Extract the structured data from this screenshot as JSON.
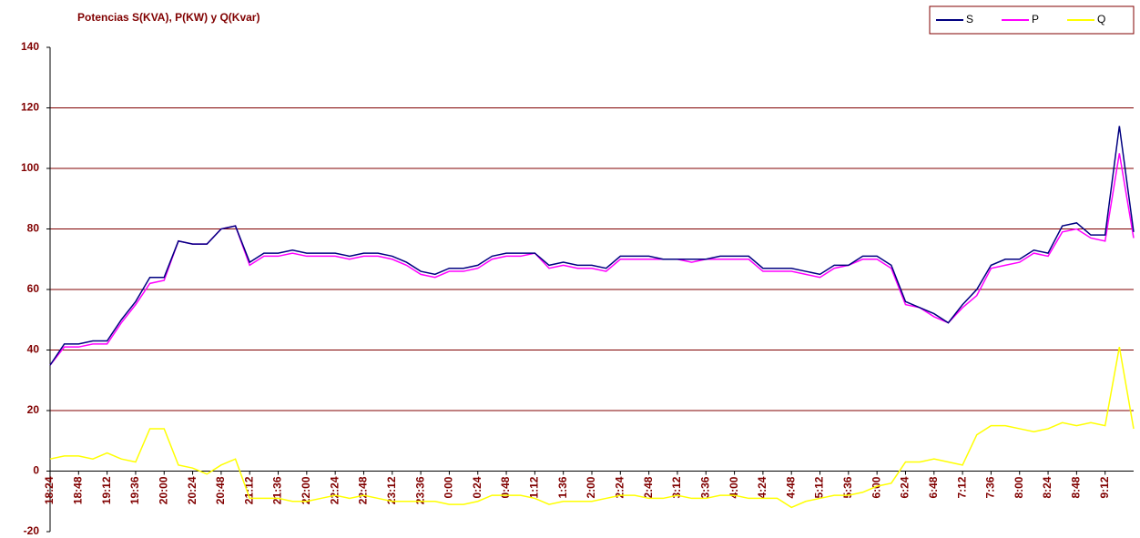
{
  "chart_data": {
    "type": "line",
    "title": "Potencias S(KVA), P(KW) y Q(Kvar)",
    "categories": [
      "18:24",
      null,
      "18:48",
      null,
      "19:12",
      null,
      "19:36",
      null,
      "20:00",
      null,
      "20:24",
      null,
      "20:48",
      null,
      "21:12",
      null,
      "21:36",
      null,
      "22:00",
      null,
      "22:24",
      null,
      "22:48",
      null,
      "23:12",
      null,
      "23:36",
      null,
      "0:00",
      null,
      "0:24",
      null,
      "0:48",
      null,
      "1:12",
      null,
      "1:36",
      null,
      "2:00",
      null,
      "2:24",
      null,
      "2:48",
      null,
      "3:12",
      null,
      "3:36",
      null,
      "4:00",
      null,
      "4:24",
      null,
      "4:48",
      null,
      "5:12",
      null,
      "5:36",
      null,
      "6:00",
      null,
      "6:24",
      null,
      "6:48",
      null,
      "7:12",
      null,
      "7:36",
      null,
      "8:00",
      null,
      "8:24",
      null,
      "8:48",
      null,
      "9:12",
      null,
      null
    ],
    "series": [
      {
        "name": "S",
        "color": "#000080",
        "values": [
          35,
          42,
          42,
          43,
          43,
          50,
          56,
          64,
          64,
          76,
          75,
          75,
          80,
          81,
          69,
          72,
          72,
          73,
          72,
          72,
          72,
          71,
          72,
          72,
          71,
          69,
          66,
          65,
          67,
          67,
          68,
          71,
          72,
          72,
          72,
          68,
          69,
          68,
          68,
          67,
          71,
          71,
          71,
          70,
          70,
          70,
          70,
          71,
          71,
          71,
          67,
          67,
          67,
          66,
          65,
          68,
          68,
          71,
          71,
          68,
          56,
          54,
          52,
          49,
          55,
          60,
          68,
          70,
          70,
          73,
          72,
          81,
          82,
          78,
          78,
          114,
          79
        ]
      },
      {
        "name": "P",
        "color": "#ff00ff",
        "values": [
          35,
          41,
          41,
          42,
          42,
          49,
          55,
          62,
          63,
          76,
          75,
          75,
          80,
          81,
          68,
          71,
          71,
          72,
          71,
          71,
          71,
          70,
          71,
          71,
          70,
          68,
          65,
          64,
          66,
          66,
          67,
          70,
          71,
          71,
          72,
          67,
          68,
          67,
          67,
          66,
          70,
          70,
          70,
          70,
          70,
          69,
          70,
          70,
          70,
          70,
          66,
          66,
          66,
          65,
          64,
          67,
          68,
          70,
          70,
          67,
          55,
          54,
          51,
          49,
          54,
          58,
          67,
          68,
          69,
          72,
          71,
          79,
          80,
          77,
          76,
          105,
          77
        ]
      },
      {
        "name": "Q",
        "color": "#ffff00",
        "values": [
          4,
          5,
          5,
          4,
          6,
          4,
          3,
          14,
          14,
          2,
          1,
          -1,
          2,
          4,
          -9,
          -9,
          -9,
          -10,
          -10,
          -9,
          -8,
          -9,
          -8,
          -9,
          -10,
          -10,
          -10,
          -10,
          -11,
          -11,
          -10,
          -8,
          -8,
          -8,
          -9,
          -11,
          -10,
          -10,
          -10,
          -9,
          -8,
          -8,
          -9,
          -9,
          -8,
          -9,
          -9,
          -8,
          -8,
          -9,
          -9,
          -9,
          -12,
          -10,
          -9,
          -8,
          -8,
          -7,
          -5,
          -4,
          3,
          3,
          4,
          3,
          2,
          12,
          15,
          15,
          14,
          13,
          14,
          16,
          15,
          16,
          15,
          41,
          14
        ]
      }
    ],
    "ylim": [
      -20,
      140
    ],
    "yticks": [
      -20,
      0,
      20,
      40,
      60,
      80,
      100,
      120,
      140
    ],
    "grid": true,
    "legend": "top-right"
  }
}
